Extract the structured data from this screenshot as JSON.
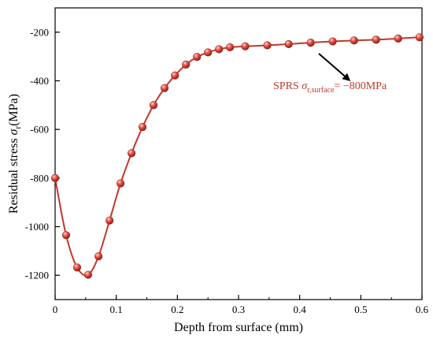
{
  "chart_data": {
    "type": "line",
    "xlabel": "Depth from surface (mm)",
    "ylabel_main": "Residual stress ",
    "ylabel_symbol": "σ",
    "ylabel_sub": "r",
    "ylabel_unit": "(MPa)",
    "xlim": [
      0,
      0.6
    ],
    "ylim": [
      -1300,
      -100
    ],
    "xticks": [
      0,
      0.1,
      0.2,
      0.3,
      0.4,
      0.5,
      0.6
    ],
    "xtick_labels": [
      "0",
      "0.1",
      "0.2",
      "0.3",
      "0.4",
      "0.5",
      "0.6"
    ],
    "yticks": [
      -1200,
      -1000,
      -800,
      -600,
      -400,
      -200
    ],
    "ytick_labels": [
      "-1200",
      "-1000",
      "-800",
      "-600",
      "-400",
      "-200"
    ],
    "grid": false,
    "series": [
      {
        "color": "#c0392b",
        "marker_color": "#e8534a",
        "x": [
          0,
          0.018,
          0.036,
          0.054,
          0.071,
          0.089,
          0.107,
          0.125,
          0.143,
          0.161,
          0.179,
          0.196,
          0.214,
          0.232,
          0.25,
          0.268,
          0.286,
          0.311,
          0.347,
          0.382,
          0.418,
          0.454,
          0.489,
          0.525,
          0.561,
          0.596
        ],
        "values": [
          -800,
          -1035,
          -1168,
          -1198,
          -1122,
          -975,
          -822,
          -698,
          -590,
          -500,
          -430,
          -378,
          -333,
          -302,
          -283,
          -270,
          -262,
          -258,
          -254,
          -249,
          -243,
          -238,
          -234,
          -231,
          -226,
          -221
        ]
      }
    ],
    "annotation": {
      "prefix": "SPRS ",
      "symbol": "σ",
      "sub": "r,surface",
      "suffix": "= −800MPa"
    }
  }
}
